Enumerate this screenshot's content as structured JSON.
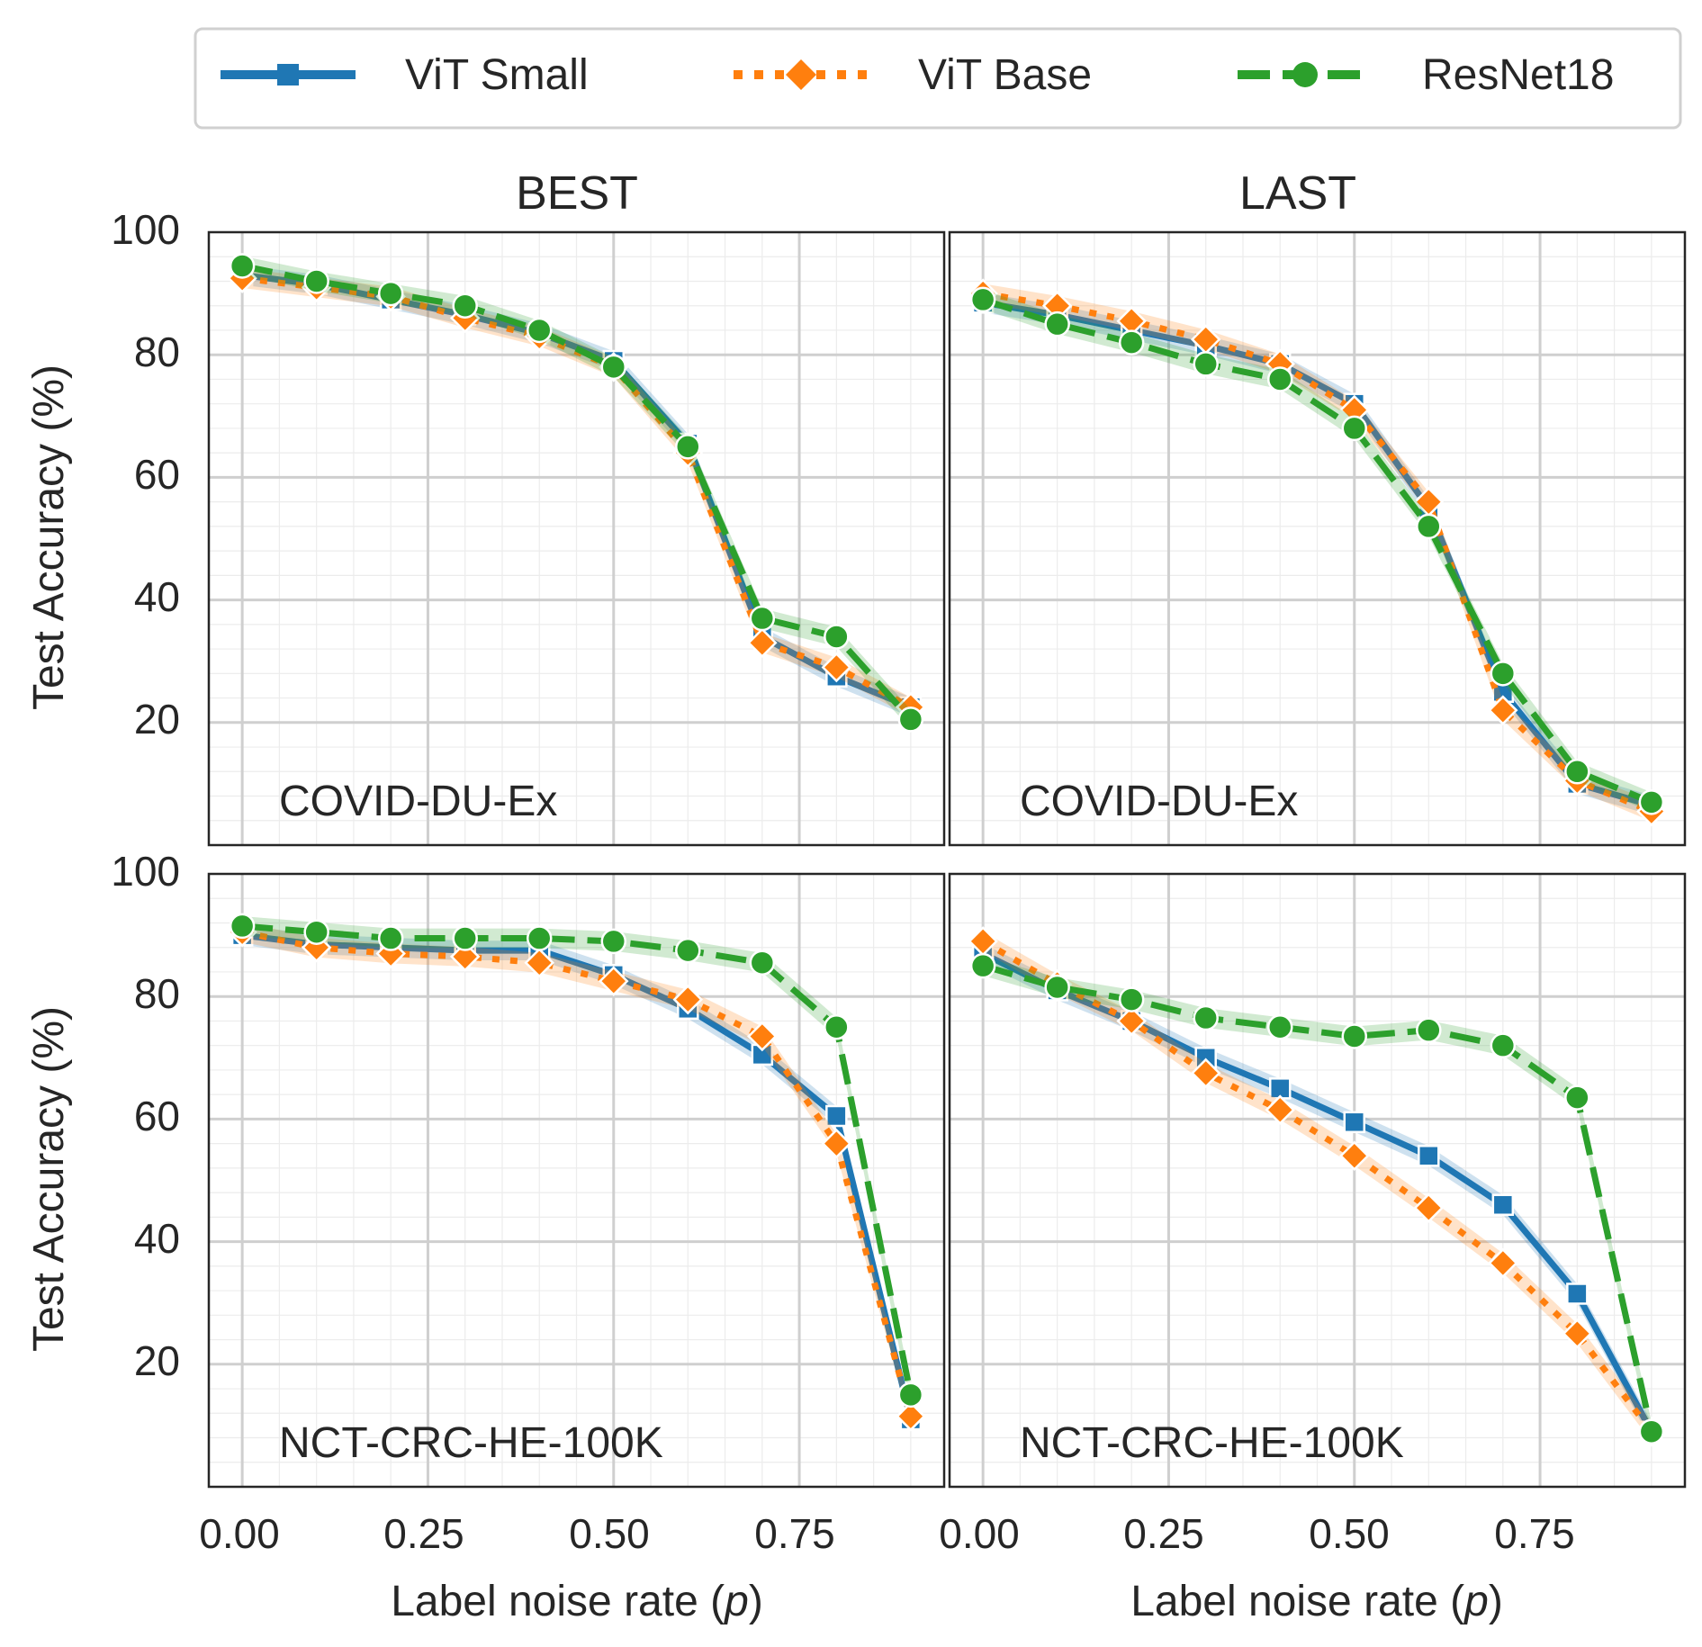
{
  "legend": {
    "entries": [
      {
        "name": "ViT Small",
        "color": "#1f77b4",
        "marker": "square",
        "line": "solid"
      },
      {
        "name": "ViT Base",
        "color": "#ff7f0e",
        "marker": "diamond",
        "line": "dotted"
      },
      {
        "name": "ResNet18",
        "color": "#2ca02c",
        "marker": "circle",
        "line": "dashed"
      }
    ]
  },
  "columns": [
    "BEST",
    "LAST"
  ],
  "axes": {
    "ylabel": "Test Accuracy (%)",
    "xlabel": "Label noise rate (",
    "xlabel_var": "p",
    "xlabel_end": ")",
    "yticks": [
      "100",
      "80",
      "60",
      "40",
      "20"
    ],
    "xticks": [
      "0.00",
      "0.25",
      "0.50",
      "0.75"
    ]
  },
  "chart_data": [
    {
      "type": "line",
      "title": "BEST",
      "annotation": "COVID-DU-Ex",
      "xlim": [
        -0.045,
        0.945
      ],
      "ylim": [
        0,
        100
      ],
      "x": [
        0,
        0.1,
        0.2,
        0.3,
        0.4,
        0.5,
        0.6,
        0.7,
        0.8,
        0.9
      ],
      "series": [
        {
          "name": "ViT Small",
          "values": [
            93,
            91.5,
            89,
            86.5,
            83.5,
            79,
            65.5,
            34,
            27.5,
            22.5
          ]
        },
        {
          "name": "ViT Base",
          "values": [
            92.5,
            91,
            89.5,
            86,
            83,
            78,
            64,
            33,
            29,
            22.5
          ]
        },
        {
          "name": "ResNet18",
          "values": [
            94.5,
            92,
            90,
            88,
            84,
            78,
            65,
            37,
            34,
            20.5
          ]
        }
      ]
    },
    {
      "type": "line",
      "title": "LAST",
      "annotation": "COVID-DU-Ex",
      "xlim": [
        -0.045,
        0.945
      ],
      "ylim": [
        0,
        100
      ],
      "x": [
        0,
        0.1,
        0.2,
        0.3,
        0.4,
        0.5,
        0.6,
        0.7,
        0.8,
        0.9
      ],
      "series": [
        {
          "name": "ViT Small",
          "values": [
            88.5,
            86.5,
            84,
            81.5,
            78.5,
            72,
            55,
            25,
            10,
            6.5
          ]
        },
        {
          "name": "ViT Base",
          "values": [
            90,
            88,
            85.5,
            82.5,
            78.5,
            71,
            56,
            22,
            10.5,
            5.5
          ]
        },
        {
          "name": "ResNet18",
          "values": [
            89,
            85,
            82,
            78.5,
            76,
            68,
            52,
            28,
            12,
            7
          ]
        }
      ]
    },
    {
      "type": "line",
      "title": "",
      "annotation": "NCT-CRC-HE-100K",
      "xlim": [
        -0.045,
        0.945
      ],
      "ylim": [
        0,
        100
      ],
      "x": [
        0,
        0.1,
        0.2,
        0.3,
        0.4,
        0.5,
        0.6,
        0.7,
        0.8,
        0.9
      ],
      "series": [
        {
          "name": "ViT Small",
          "values": [
            90,
            88.5,
            88,
            87.5,
            87.5,
            83.5,
            78,
            70.5,
            60.5,
            11
          ]
        },
        {
          "name": "ViT Base",
          "values": [
            90.5,
            88,
            87,
            86.5,
            85.5,
            82.5,
            79.5,
            73.5,
            56,
            11.5
          ]
        },
        {
          "name": "ResNet18",
          "values": [
            91.5,
            90.5,
            89.5,
            89.5,
            89.5,
            89,
            87.5,
            85.5,
            75,
            15
          ]
        }
      ]
    },
    {
      "type": "line",
      "title": "",
      "annotation": "NCT-CRC-HE-100K",
      "xlim": [
        -0.045,
        0.945
      ],
      "ylim": [
        0,
        100
      ],
      "x": [
        0,
        0.1,
        0.2,
        0.3,
        0.4,
        0.5,
        0.6,
        0.7,
        0.8,
        0.9
      ],
      "series": [
        {
          "name": "ViT Small",
          "values": [
            87,
            81,
            76,
            70,
            65,
            59.5,
            54,
            46,
            31.5,
            9
          ]
        },
        {
          "name": "ViT Base",
          "values": [
            89,
            82,
            76,
            67.5,
            61.5,
            54,
            45.5,
            36.5,
            25,
            9
          ]
        },
        {
          "name": "ResNet18",
          "values": [
            85,
            81.5,
            79.5,
            76.5,
            75,
            73.5,
            74.5,
            72,
            63.5,
            9
          ]
        }
      ]
    }
  ]
}
